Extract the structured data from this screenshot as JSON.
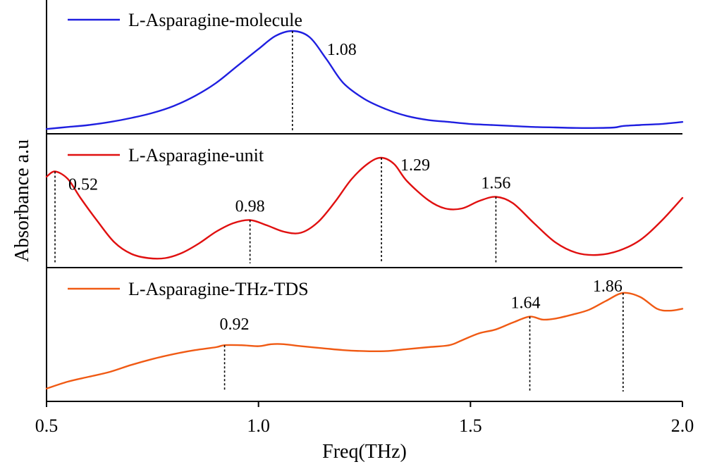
{
  "chart_data": {
    "type": "line",
    "xlabel": "Freq(THz)",
    "ylabel": "Absorbance a.u",
    "xlim": [
      0.5,
      2.0
    ],
    "x_ticks": [
      {
        "value": 0.5,
        "label": "0.5"
      },
      {
        "value": 1.0,
        "label": "1.0"
      },
      {
        "value": 1.5,
        "label": "1.5"
      },
      {
        "value": 2.0,
        "label": "2.0"
      }
    ],
    "grid": false,
    "legend_position": "top-left of each panel",
    "panels": [
      {
        "series_name": "L-Asparagine-molecule",
        "color": "#1f1fe0",
        "ylim": [
          0,
          1
        ],
        "points": [
          [
            0.5,
            0.02
          ],
          [
            0.55,
            0.04
          ],
          [
            0.6,
            0.06
          ],
          [
            0.65,
            0.09
          ],
          [
            0.7,
            0.13
          ],
          [
            0.75,
            0.18
          ],
          [
            0.8,
            0.25
          ],
          [
            0.85,
            0.35
          ],
          [
            0.9,
            0.48
          ],
          [
            0.95,
            0.65
          ],
          [
            1.0,
            0.82
          ],
          [
            1.04,
            0.95
          ],
          [
            1.08,
            1.0
          ],
          [
            1.12,
            0.94
          ],
          [
            1.16,
            0.72
          ],
          [
            1.2,
            0.48
          ],
          [
            1.25,
            0.32
          ],
          [
            1.3,
            0.22
          ],
          [
            1.35,
            0.15
          ],
          [
            1.4,
            0.11
          ],
          [
            1.45,
            0.09
          ],
          [
            1.5,
            0.07
          ],
          [
            1.55,
            0.06
          ],
          [
            1.6,
            0.05
          ],
          [
            1.65,
            0.04
          ],
          [
            1.7,
            0.035
          ],
          [
            1.75,
            0.03
          ],
          [
            1.8,
            0.03
          ],
          [
            1.84,
            0.035
          ],
          [
            1.86,
            0.05
          ],
          [
            1.9,
            0.06
          ],
          [
            1.95,
            0.07
          ],
          [
            2.0,
            0.09
          ]
        ],
        "peaks": [
          {
            "x": 1.08,
            "label": "1.08",
            "y": 1.0
          }
        ]
      },
      {
        "series_name": "L-Asparagine-unit",
        "color": "#e01010",
        "ylim": [
          0,
          1
        ],
        "points": [
          [
            0.5,
            0.82
          ],
          [
            0.52,
            0.87
          ],
          [
            0.55,
            0.8
          ],
          [
            0.58,
            0.62
          ],
          [
            0.62,
            0.4
          ],
          [
            0.66,
            0.2
          ],
          [
            0.7,
            0.09
          ],
          [
            0.74,
            0.05
          ],
          [
            0.78,
            0.05
          ],
          [
            0.82,
            0.1
          ],
          [
            0.86,
            0.19
          ],
          [
            0.9,
            0.3
          ],
          [
            0.94,
            0.38
          ],
          [
            0.98,
            0.41
          ],
          [
            1.02,
            0.36
          ],
          [
            1.06,
            0.3
          ],
          [
            1.1,
            0.29
          ],
          [
            1.14,
            0.39
          ],
          [
            1.18,
            0.58
          ],
          [
            1.22,
            0.8
          ],
          [
            1.26,
            0.95
          ],
          [
            1.29,
            1.0
          ],
          [
            1.32,
            0.94
          ],
          [
            1.35,
            0.78
          ],
          [
            1.4,
            0.6
          ],
          [
            1.44,
            0.52
          ],
          [
            1.48,
            0.52
          ],
          [
            1.52,
            0.59
          ],
          [
            1.56,
            0.63
          ],
          [
            1.6,
            0.57
          ],
          [
            1.65,
            0.38
          ],
          [
            1.7,
            0.2
          ],
          [
            1.75,
            0.1
          ],
          [
            1.8,
            0.08
          ],
          [
            1.85,
            0.12
          ],
          [
            1.9,
            0.22
          ],
          [
            1.95,
            0.4
          ],
          [
            2.0,
            0.62
          ]
        ],
        "peaks": [
          {
            "x": 0.52,
            "label": "0.52",
            "y": 0.87
          },
          {
            "x": 0.98,
            "label": "0.98",
            "y": 0.41
          },
          {
            "x": 1.29,
            "label": "1.29",
            "y": 1.0
          },
          {
            "x": 1.56,
            "label": "1.56",
            "y": 0.63
          }
        ]
      },
      {
        "series_name": "L-Asparagine-THz-TDS",
        "color": "#f05a14",
        "ylim": [
          0,
          1
        ],
        "points": [
          [
            0.5,
            0.03
          ],
          [
            0.55,
            0.1
          ],
          [
            0.6,
            0.15
          ],
          [
            0.65,
            0.2
          ],
          [
            0.7,
            0.27
          ],
          [
            0.75,
            0.33
          ],
          [
            0.8,
            0.38
          ],
          [
            0.85,
            0.42
          ],
          [
            0.9,
            0.45
          ],
          [
            0.92,
            0.47
          ],
          [
            0.96,
            0.47
          ],
          [
            1.0,
            0.46
          ],
          [
            1.03,
            0.48
          ],
          [
            1.06,
            0.48
          ],
          [
            1.1,
            0.46
          ],
          [
            1.15,
            0.44
          ],
          [
            1.2,
            0.42
          ],
          [
            1.25,
            0.41
          ],
          [
            1.3,
            0.41
          ],
          [
            1.35,
            0.43
          ],
          [
            1.4,
            0.45
          ],
          [
            1.45,
            0.47
          ],
          [
            1.48,
            0.52
          ],
          [
            1.52,
            0.59
          ],
          [
            1.56,
            0.63
          ],
          [
            1.6,
            0.7
          ],
          [
            1.64,
            0.76
          ],
          [
            1.67,
            0.73
          ],
          [
            1.7,
            0.74
          ],
          [
            1.74,
            0.78
          ],
          [
            1.78,
            0.83
          ],
          [
            1.82,
            0.92
          ],
          [
            1.86,
            1.0
          ],
          [
            1.9,
            0.96
          ],
          [
            1.94,
            0.84
          ],
          [
            1.97,
            0.82
          ],
          [
            2.0,
            0.84
          ]
        ],
        "peaks": [
          {
            "x": 0.92,
            "label": "0.92",
            "y": 0.47
          },
          {
            "x": 1.64,
            "label": "1.64",
            "y": 0.76
          },
          {
            "x": 1.86,
            "label": "1.86",
            "y": 1.0
          }
        ]
      }
    ]
  }
}
